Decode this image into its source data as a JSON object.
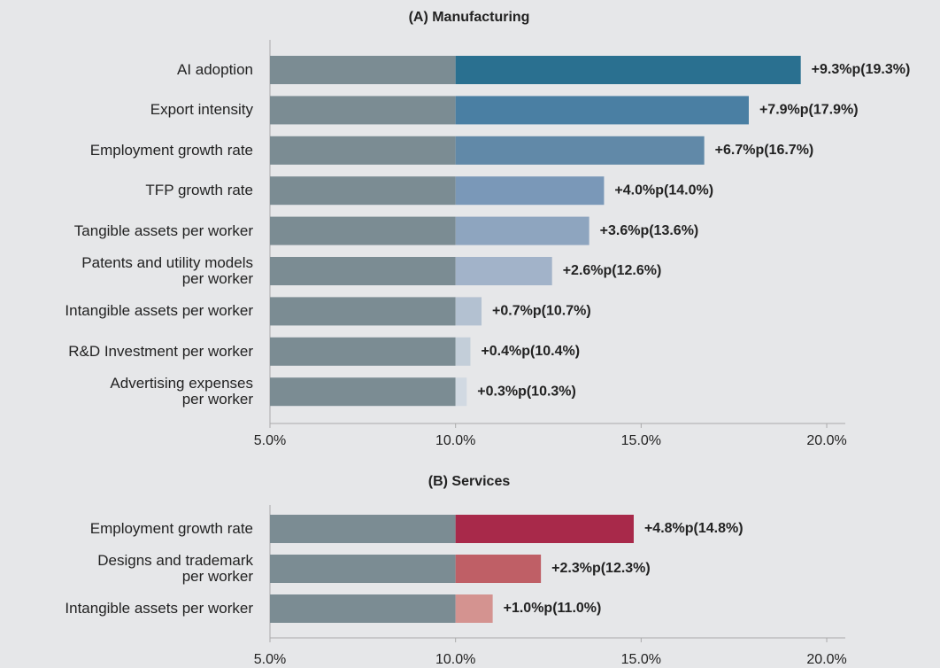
{
  "chart_data": [
    {
      "type": "bar",
      "title": "(A) Manufacturing",
      "categories": [
        "AI adoption",
        "Export intensity",
        "Employment growth rate",
        "TFP growth rate",
        "Tangible assets per worker",
        "Patents and utility models\nper worker",
        "Intangible assets per worker",
        "R&D Investment per worker",
        "Advertising expenses\nper worker"
      ],
      "base": 10,
      "base_color": "#7b8c93",
      "values": [
        19.3,
        17.9,
        16.7,
        14.0,
        13.6,
        12.6,
        10.7,
        10.4,
        10.3
      ],
      "value_labels": [
        "+9.3%p(19.3%)",
        "+7.9%p(17.9%)",
        "+6.7%p(16.7%)",
        "+4.0%p(14.0%)",
        "+3.6%p(13.6%)",
        "+2.6%p(12.6%)",
        "+0.7%p(10.7%)",
        "+0.4%p(10.4%)",
        "+0.3%p(10.3%)"
      ],
      "colors": [
        "#2a7090",
        "#4a7fa3",
        "#6189a8",
        "#7a98b8",
        "#8ea5bf",
        "#a2b3c9",
        "#b3c1d1",
        "#c3ced9",
        "#d1d9e2"
      ],
      "xlim": [
        5,
        20.5
      ],
      "xticks": [
        {
          "value": 5,
          "label": "5.0%"
        },
        {
          "value": 10,
          "label": "10.0%"
        },
        {
          "value": 15,
          "label": "15.0%"
        },
        {
          "value": 20,
          "label": "20.0%"
        }
      ]
    },
    {
      "type": "bar",
      "title": "(B) Services",
      "categories": [
        "Employment growth rate",
        "Designs and trademark\nper worker",
        "Intangible assets per worker"
      ],
      "base": 10,
      "base_color": "#7b8c93",
      "values": [
        14.8,
        12.3,
        11.0
      ],
      "value_labels": [
        "+4.8%p(14.8%)",
        "+2.3%p(12.3%)",
        "+1.0%p(11.0%)"
      ],
      "colors": [
        "#a8294a",
        "#bf5f66",
        "#d49390"
      ],
      "xlim": [
        5,
        20.5
      ],
      "xticks": [
        {
          "value": 5,
          "label": "5.0%"
        },
        {
          "value": 10,
          "label": "10.0%"
        },
        {
          "value": 15,
          "label": "15.0%"
        },
        {
          "value": 20,
          "label": "20.0%"
        }
      ]
    }
  ]
}
